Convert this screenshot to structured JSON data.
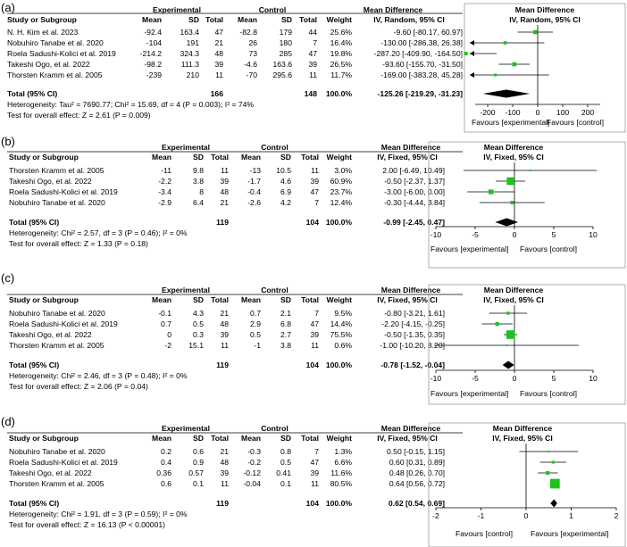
{
  "chart_data": [
    {
      "type": "forest",
      "panel_label": "(a)",
      "headers": {
        "group1": "Experimental",
        "group2": "Control",
        "study": "Study or Subgroup",
        "mean": "Mean",
        "sd": "SD",
        "total": "Total",
        "weight": "Weight",
        "md_title": "Mean Difference",
        "md_sub": "IV, Random, 95% CI"
      },
      "studies": [
        {
          "name": "N. H. Kim et al. 2023",
          "e_mean": "-92.4",
          "e_sd": "163.4",
          "e_total": "47",
          "c_mean": "-82.8",
          "c_sd": "179",
          "c_total": "44",
          "weight": "25.6%",
          "ci_text": "-9.60 [-80.17, 60.97]",
          "md": -9.6,
          "lo": -80.17,
          "hi": 60.97,
          "w": 25.6
        },
        {
          "name": "Nobuhiro Tanabe et al. 2020",
          "e_mean": "-104",
          "e_sd": "191",
          "e_total": "21",
          "c_mean": "26",
          "c_sd": "180",
          "c_total": "7",
          "weight": "16.4%",
          "ci_text": "-130.00 [-286.38, 26.38]",
          "md": -130.0,
          "lo": -286.38,
          "hi": 26.38,
          "w": 16.4
        },
        {
          "name": "Roela Sadushi-Kolici et al. 2019",
          "e_mean": "-214.2",
          "e_sd": "324.3",
          "e_total": "48",
          "c_mean": "73",
          "c_sd": "285",
          "c_total": "47",
          "weight": "19.8%",
          "ci_text": "-287.20 [-409.90, -164.50]",
          "md": -287.2,
          "lo": -409.9,
          "hi": -164.5,
          "w": 19.8
        },
        {
          "name": "Takeshi Ogo, et al. 2022",
          "e_mean": "-98.2",
          "e_sd": "111.3",
          "e_total": "39",
          "c_mean": "-4.6",
          "c_sd": "163.6",
          "c_total": "39",
          "weight": "26.5%",
          "ci_text": "-93.60 [-155.70, -31.50]",
          "md": -93.6,
          "lo": -155.7,
          "hi": -31.5,
          "w": 26.5
        },
        {
          "name": "Thorsten Kramm et al. 2005",
          "e_mean": "-239",
          "e_sd": "210",
          "e_total": "11",
          "c_mean": "-70",
          "c_sd": "295.6",
          "c_total": "11",
          "weight": "11.7%",
          "ci_text": "-169.00 [-383.28, 45.28]",
          "md": -169.0,
          "lo": -383.28,
          "hi": 45.28,
          "w": 11.7
        }
      ],
      "total": {
        "label": "Total (95% CI)",
        "e_total": "166",
        "c_total": "148",
        "weight": "100.0%",
        "ci_text": "-125.26 [-219.29, -31.23]",
        "md": -125.26,
        "lo": -219.29,
        "hi": -31.23
      },
      "heterogeneity": "Heterogeneity: Tau² = 7690.77; Chi² = 15.69, df = 4 (P = 0.003); I² = 74%",
      "overall_effect": "Test for overall effect: Z = 2.61 (P = 0.009)",
      "axis": {
        "min": -250,
        "max": 250,
        "ticks": [
          -200,
          -100,
          0,
          100,
          200
        ],
        "tick_labels": [
          "-200",
          "-100",
          "0",
          "100",
          "200"
        ]
      },
      "favours_left": "Favours [experimental]",
      "favours_right": "Favours [control]"
    },
    {
      "type": "forest",
      "panel_label": "(b)",
      "headers": {
        "group1": "Experimental",
        "group2": "Control",
        "study": "Study or Subgroup",
        "mean": "Mean",
        "sd": "SD",
        "total": "Total",
        "weight": "Weight",
        "md_title": "Mean Difference",
        "md_sub": "IV, Fixed, 95% CI"
      },
      "studies": [
        {
          "name": "Thorsten Kramm et al. 2005",
          "e_mean": "-11",
          "e_sd": "9.8",
          "e_total": "11",
          "c_mean": "-13",
          "c_sd": "10.5",
          "c_total": "11",
          "weight": "3.0%",
          "ci_text": "2.00 [-6.49, 10.49]",
          "md": 2.0,
          "lo": -6.49,
          "hi": 10.49,
          "w": 3.0
        },
        {
          "name": "Takeshi Ogo, et al. 2022",
          "e_mean": "-2.2",
          "e_sd": "3.8",
          "e_total": "39",
          "c_mean": "-1.7",
          "c_sd": "4.6",
          "c_total": "39",
          "weight": "60.9%",
          "ci_text": "-0.50 [-2.37, 1.37]",
          "md": -0.5,
          "lo": -2.37,
          "hi": 1.37,
          "w": 60.9
        },
        {
          "name": "Roela Sadushi-Kolici et al. 2019",
          "e_mean": "-3.4",
          "e_sd": "8",
          "e_total": "48",
          "c_mean": "-0.4",
          "c_sd": "6.9",
          "c_total": "47",
          "weight": "23.7%",
          "ci_text": "-3.00 [-6.00, 0.00]",
          "md": -3.0,
          "lo": -6.0,
          "hi": 0.0,
          "w": 23.7
        },
        {
          "name": "Nobuhiro Tanabe et al. 2020",
          "e_mean": "-2.9",
          "e_sd": "6.4",
          "e_total": "21",
          "c_mean": "-2.6",
          "c_sd": "4.2",
          "c_total": "7",
          "weight": "12.4%",
          "ci_text": "-0.30 [-4.44, 3.84]",
          "md": -0.3,
          "lo": -4.44,
          "hi": 3.84,
          "w": 12.4
        }
      ],
      "total": {
        "label": "Total (95% CI)",
        "e_total": "119",
        "c_total": "104",
        "weight": "100.0%",
        "ci_text": "-0.99 [-2.45, 0.47]",
        "md": -0.99,
        "lo": -2.45,
        "hi": 0.47
      },
      "heterogeneity": "Heterogeneity: Chi² = 2.57, df = 3 (P = 0.46); I² = 0%",
      "overall_effect": "Test for overall effect: Z = 1.33 (P = 0.18)",
      "axis": {
        "min": -10,
        "max": 10,
        "ticks": [
          -10,
          -5,
          0,
          5,
          10
        ],
        "tick_labels": [
          "-10",
          "-5",
          "0",
          "5",
          "10"
        ]
      },
      "favours_left": "Favours [experimental]",
      "favours_right": "Favours [control]"
    },
    {
      "type": "forest",
      "panel_label": "(c)",
      "headers": {
        "group1": "Experimental",
        "group2": "Control",
        "study": "Study or Subgroup",
        "mean": "Mean",
        "sd": "SD",
        "total": "Total",
        "weight": "Weight",
        "md_title": "Mean Difference",
        "md_sub": "IV, Fixed, 95% CI"
      },
      "studies": [
        {
          "name": "Nobuhiro Tanabe et al. 2020",
          "e_mean": "-0.1",
          "e_sd": "4.3",
          "e_total": "21",
          "c_mean": "0.7",
          "c_sd": "2.1",
          "c_total": "7",
          "weight": "9.5%",
          "ci_text": "-0.80 [-3.21, 1.61]",
          "md": -0.8,
          "lo": -3.21,
          "hi": 1.61,
          "w": 9.5
        },
        {
          "name": "Roela Sadushi-Kolici et al. 2019",
          "e_mean": "0.7",
          "e_sd": "0.5",
          "e_total": "48",
          "c_mean": "2.9",
          "c_sd": "6.8",
          "c_total": "47",
          "weight": "14.4%",
          "ci_text": "-2.20 [-4.15, -0.25]",
          "md": -2.2,
          "lo": -4.15,
          "hi": -0.25,
          "w": 14.4
        },
        {
          "name": "Takeshi Ogo, et al. 2022",
          "e_mean": "0",
          "e_sd": "0.3",
          "e_total": "39",
          "c_mean": "0.5",
          "c_sd": "2.7",
          "c_total": "39",
          "weight": "75.5%",
          "ci_text": "-0.50 [-1.35, 0.35]",
          "md": -0.5,
          "lo": -1.35,
          "hi": 0.35,
          "w": 75.5
        },
        {
          "name": "Thorsten Kramm et al. 2005",
          "e_mean": "-2",
          "e_sd": "15.1",
          "e_total": "11",
          "c_mean": "-1",
          "c_sd": "3.8",
          "c_total": "11",
          "weight": "0.6%",
          "ci_text": "-1.00 [-10.20, 8.20]",
          "md": -1.0,
          "lo": -10.2,
          "hi": 8.2,
          "w": 0.6
        }
      ],
      "total": {
        "label": "Total (95% CI)",
        "e_total": "119",
        "c_total": "104",
        "weight": "100.0%",
        "ci_text": "-0.78 [-1.52, -0.04]",
        "md": -0.78,
        "lo": -1.52,
        "hi": -0.04
      },
      "heterogeneity": "Heterogeneity: Chi² = 2.46, df = 3 (P = 0.48); I² = 0%",
      "overall_effect": "Test for overall effect: Z = 2.06 (P = 0.04)",
      "axis": {
        "min": -10,
        "max": 10,
        "ticks": [
          -10,
          -5,
          0,
          5,
          10
        ],
        "tick_labels": [
          "-10",
          "-5",
          "0",
          "5",
          "10"
        ]
      },
      "favours_left": "Favours [experimental]",
      "favours_right": "Favours [control]"
    },
    {
      "type": "forest",
      "panel_label": "(d)",
      "headers": {
        "group1": "Experimental",
        "group2": "Control",
        "study": "Study or Subgroup",
        "mean": "Mean",
        "sd": "SD",
        "total": "Total",
        "weight": "Weight",
        "md_title": "Mean Difference",
        "md_sub": "IV, Fixed, 95% CI"
      },
      "studies": [
        {
          "name": "Nobuhiro Tanabe et al. 2020",
          "e_mean": "0.2",
          "e_sd": "0.6",
          "e_total": "21",
          "c_mean": "-0.3",
          "c_sd": "0.8",
          "c_total": "7",
          "weight": "1.3%",
          "ci_text": "0.50 [-0.15, 1.15]",
          "md": 0.5,
          "lo": -0.15,
          "hi": 1.15,
          "w": 1.3
        },
        {
          "name": "Roela Sadushi-Kolici et al. 2019",
          "e_mean": "0.4",
          "e_sd": "0.9",
          "e_total": "48",
          "c_mean": "-0.2",
          "c_sd": "0.5",
          "c_total": "47",
          "weight": "6.6%",
          "ci_text": "0.60 [0.31, 0.89]",
          "md": 0.6,
          "lo": 0.31,
          "hi": 0.89,
          "w": 6.6
        },
        {
          "name": "Takeshi Ogo, et al. 2022",
          "e_mean": "0.36",
          "e_sd": "0.57",
          "e_total": "39",
          "c_mean": "-0.12",
          "c_sd": "0.41",
          "c_total": "39",
          "weight": "11.6%",
          "ci_text": "0.48 [0.26, 0.70]",
          "md": 0.48,
          "lo": 0.26,
          "hi": 0.7,
          "w": 11.6
        },
        {
          "name": "Thorsten Kramm et al. 2005",
          "e_mean": "0.6",
          "e_sd": "0.1",
          "e_total": "11",
          "c_mean": "-0.04",
          "c_sd": "0.1",
          "c_total": "11",
          "weight": "80.5%",
          "ci_text": "0.64 [0.56, 0.72]",
          "md": 0.64,
          "lo": 0.56,
          "hi": 0.72,
          "w": 80.5
        }
      ],
      "total": {
        "label": "Total (95% CI)",
        "e_total": "119",
        "c_total": "104",
        "weight": "100.0%",
        "ci_text": "0.62 [0.54, 0.69]",
        "md": 0.62,
        "lo": 0.54,
        "hi": 0.69
      },
      "heterogeneity": "Heterogeneity: Chi² = 1.91, df = 3 (P = 0.59); I² = 0%",
      "overall_effect": "Test for overall effect: Z = 16.13 (P < 0.00001)",
      "axis": {
        "min": -2,
        "max": 2,
        "ticks": [
          -2,
          -1,
          0,
          1,
          2
        ],
        "tick_labels": [
          "-2",
          "-1",
          "0",
          "1",
          "2"
        ]
      },
      "favours_left": "Favours [control]",
      "favours_right": "Favours [experimental]"
    }
  ],
  "colors": {
    "marker": "#1dc21d",
    "line": "#000000",
    "diamond": "#000000"
  }
}
